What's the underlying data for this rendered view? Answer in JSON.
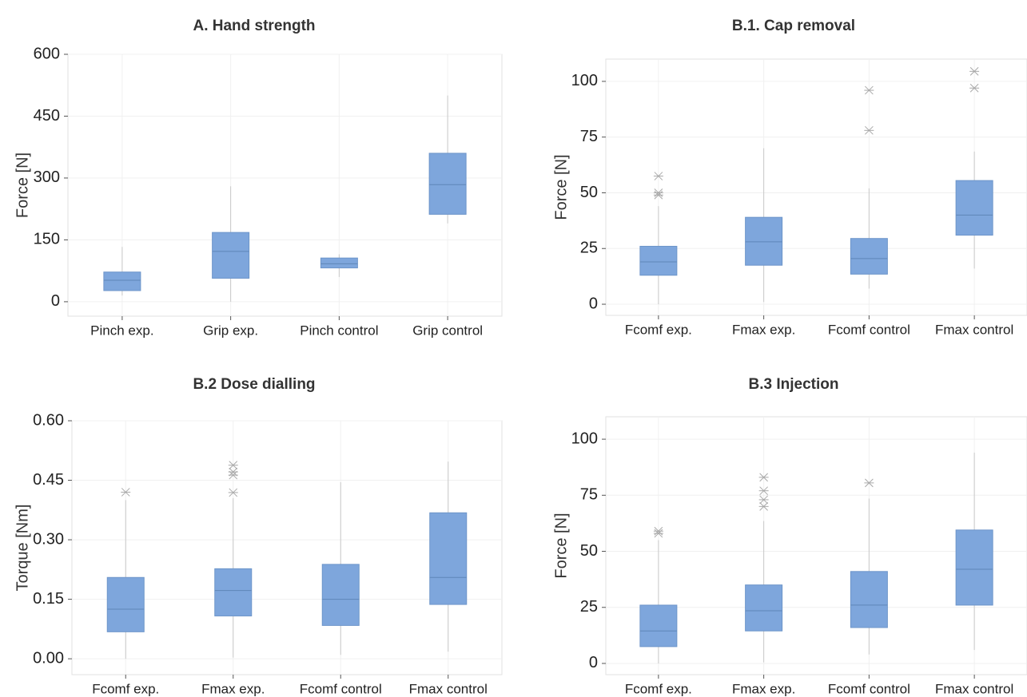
{
  "chart_data": [
    {
      "type": "box",
      "title": "A. Hand strength",
      "ylabel": "Force [N]",
      "ylim": [
        -35,
        600
      ],
      "yticks": [
        "0",
        "150",
        "300",
        "450",
        "600"
      ],
      "categories": [
        "Pinch exp.",
        "Grip exp.",
        "Pinch control",
        "Grip control"
      ],
      "boxes": [
        {
          "min": 15,
          "q1": 27,
          "median": 52,
          "q3": 72,
          "max": 133,
          "outliers": []
        },
        {
          "min": 0,
          "q1": 57,
          "median": 122,
          "q3": 168,
          "max": 280,
          "outliers": []
        },
        {
          "min": 60,
          "q1": 82,
          "median": 92,
          "q3": 106,
          "max": 115,
          "outliers": []
        },
        {
          "min": 190,
          "q1": 212,
          "median": 284,
          "q3": 360,
          "max": 500,
          "outliers": []
        }
      ]
    },
    {
      "type": "box",
      "title": "B.1. Cap removal",
      "ylabel": "Force [N]",
      "ylim": [
        -5,
        110
      ],
      "yticks": [
        "0",
        "25",
        "50",
        "75",
        "100"
      ],
      "categories": [
        "Fcomf exp.",
        "Fmax exp.",
        "Fcomf control",
        "Fmax control"
      ],
      "boxes": [
        {
          "min": 0,
          "q1": 13,
          "median": 19,
          "q3": 26,
          "max": 44,
          "outliers": [
            49,
            50,
            57.5
          ]
        },
        {
          "min": 1,
          "q1": 17.5,
          "median": 28,
          "q3": 39,
          "max": 70,
          "outliers": []
        },
        {
          "min": 7,
          "q1": 13.5,
          "median": 20.5,
          "q3": 29.5,
          "max": 52,
          "outliers": [
            78,
            96
          ]
        },
        {
          "min": 16,
          "q1": 31,
          "median": 40,
          "q3": 55.5,
          "max": 68.5,
          "outliers": [
            97,
            104.5
          ]
        }
      ]
    },
    {
      "type": "box",
      "title": "B.2 Dose dialling",
      "ylabel": "Torque [Nm]",
      "ylim": [
        -0.04,
        0.6
      ],
      "yticks": [
        "0.00",
        "0.15",
        "0.30",
        "0.45",
        "0.60"
      ],
      "categories": [
        "Fcomf exp.",
        "Fmax exp.",
        "Fcomf control",
        "Fmax control"
      ],
      "boxes": [
        {
          "min": 0,
          "q1": 0.068,
          "median": 0.125,
          "q3": 0.205,
          "max": 0.4,
          "outliers": [
            0.42
          ]
        },
        {
          "min": 0.003,
          "q1": 0.108,
          "median": 0.172,
          "q3": 0.227,
          "max": 0.405,
          "outliers": [
            0.419,
            0.463,
            0.471,
            0.488
          ]
        },
        {
          "min": 0.01,
          "q1": 0.084,
          "median": 0.15,
          "q3": 0.238,
          "max": 0.445,
          "outliers": []
        },
        {
          "min": 0.018,
          "q1": 0.137,
          "median": 0.205,
          "q3": 0.368,
          "max": 0.497,
          "outliers": []
        }
      ]
    },
    {
      "type": "box",
      "title": "B.3 Injection",
      "ylabel": "Force [N]",
      "ylim": [
        -5,
        110
      ],
      "yticks": [
        "0",
        "25",
        "50",
        "75",
        "100"
      ],
      "categories": [
        "Fcomf exp.",
        "Fmax exp.",
        "Fcomf control",
        "Fmax control"
      ],
      "boxes": [
        {
          "min": 0,
          "q1": 7.5,
          "median": 14.5,
          "q3": 26,
          "max": 55,
          "outliers": [
            58,
            59
          ]
        },
        {
          "min": 0.5,
          "q1": 14.5,
          "median": 23.5,
          "q3": 35,
          "max": 63.5,
          "outliers": [
            70,
            73,
            77,
            83
          ]
        },
        {
          "min": 4,
          "q1": 16,
          "median": 26,
          "q3": 41,
          "max": 73.5,
          "outliers": [
            80.5
          ]
        },
        {
          "min": 6,
          "q1": 26,
          "median": 42,
          "q3": 59.5,
          "max": 94,
          "outliers": []
        }
      ]
    }
  ]
}
